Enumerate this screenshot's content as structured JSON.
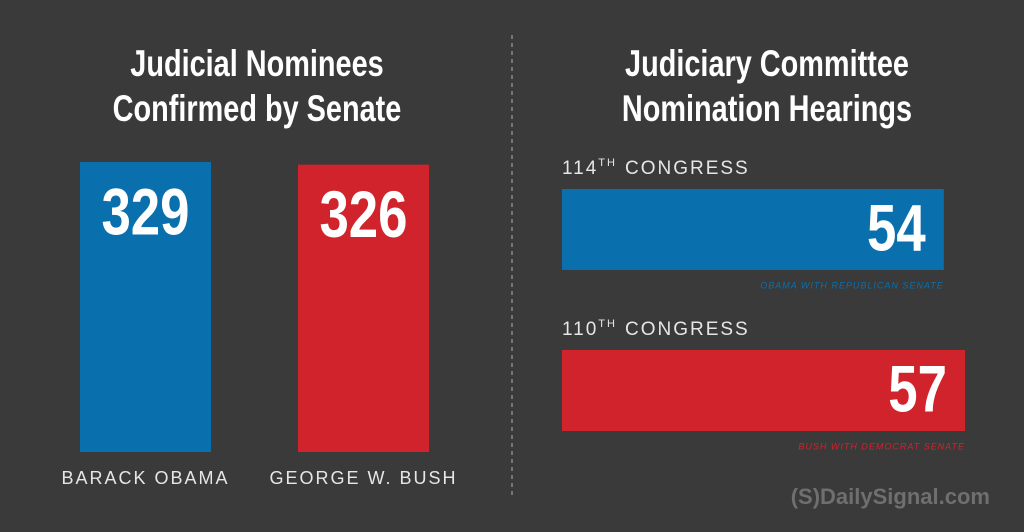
{
  "chart_data": [
    {
      "type": "bar",
      "title": [
        "Judicial Nominees",
        "Confirmed by Senate"
      ],
      "categories": [
        "BARACK OBAMA",
        "GEORGE W. BUSH"
      ],
      "values": [
        329,
        326
      ],
      "colors": [
        "#0a6fad",
        "#d0232b"
      ]
    },
    {
      "type": "hbar",
      "title": [
        "Judiciary Committee",
        "Nomination Hearings"
      ],
      "categories": [
        {
          "number": "114",
          "ordinal": "TH",
          "label": "CONGRESS"
        },
        {
          "number": "110",
          "ordinal": "TH",
          "label": "CONGRESS"
        }
      ],
      "values": [
        54,
        57
      ],
      "notes": [
        "OBAMA WITH REPUBLICAN SENATE",
        "BUSH WITH DEMOCRAT SENATE"
      ],
      "colors": [
        "#0a6fad",
        "#d0232b"
      ]
    }
  ],
  "logo": {
    "mark": "(S)",
    "text": "DailySignal.com"
  }
}
